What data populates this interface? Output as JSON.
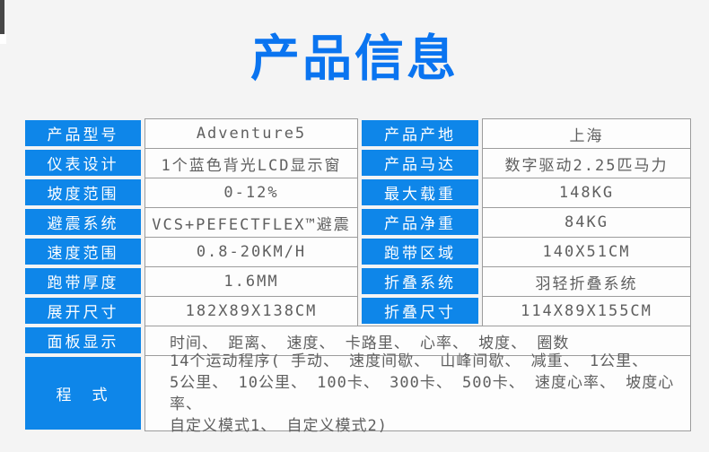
{
  "theme": {
    "accent_blue": "#0e86e9",
    "title_blue": "#0a74f0",
    "page_bg": "#f4f4f4",
    "border_gray": "#9c9c9c",
    "value_text": "#5f5f5f",
    "label_text": "#ffffff"
  },
  "header": {
    "title": "产品信息"
  },
  "table": {
    "rows": [
      {
        "c0": "产品型号",
        "c1": "Adventure5",
        "c2": "产品产地",
        "c3": "上海"
      },
      {
        "c0": "仪表设计",
        "c1": "1个蓝色背光LCD显示窗",
        "c2": "产品马达",
        "c3": "数字驱动2.25匹马力"
      },
      {
        "c0": "坡度范围",
        "c1": "0-12%",
        "c2": "最大载重",
        "c3": "148KG"
      },
      {
        "c0": "避震系统",
        "c1": "VCS+PEFECTFLEX™避震",
        "c2": "产品净重",
        "c3": "84KG"
      },
      {
        "c0": "速度范围",
        "c1": "0.8-20KM/H",
        "c2": "跑带区域",
        "c3": "140X51CM"
      },
      {
        "c0": "跑带厚度",
        "c1": "1.6MM",
        "c2": "折叠系统",
        "c3": "羽轻折叠系统"
      },
      {
        "c0": "展开尺寸",
        "c1": "182X89X138CM",
        "c2": "折叠尺寸",
        "c3": "114X89X155CM"
      }
    ],
    "panel_row": {
      "label": "面板显示",
      "value": "时间、 距离、 速度、 卡路里、 心率、 坡度、 圈数"
    },
    "program_row": {
      "label": "程　式",
      "value": "14个运动程序( 手动、 速度间歇、 山峰间歇、 减重、 1公里、\n5公里、 10公里、 100卡、 300卡、 500卡、 速度心率、 坡度心率、\n自定义模式1、 自定义模式2)"
    }
  }
}
